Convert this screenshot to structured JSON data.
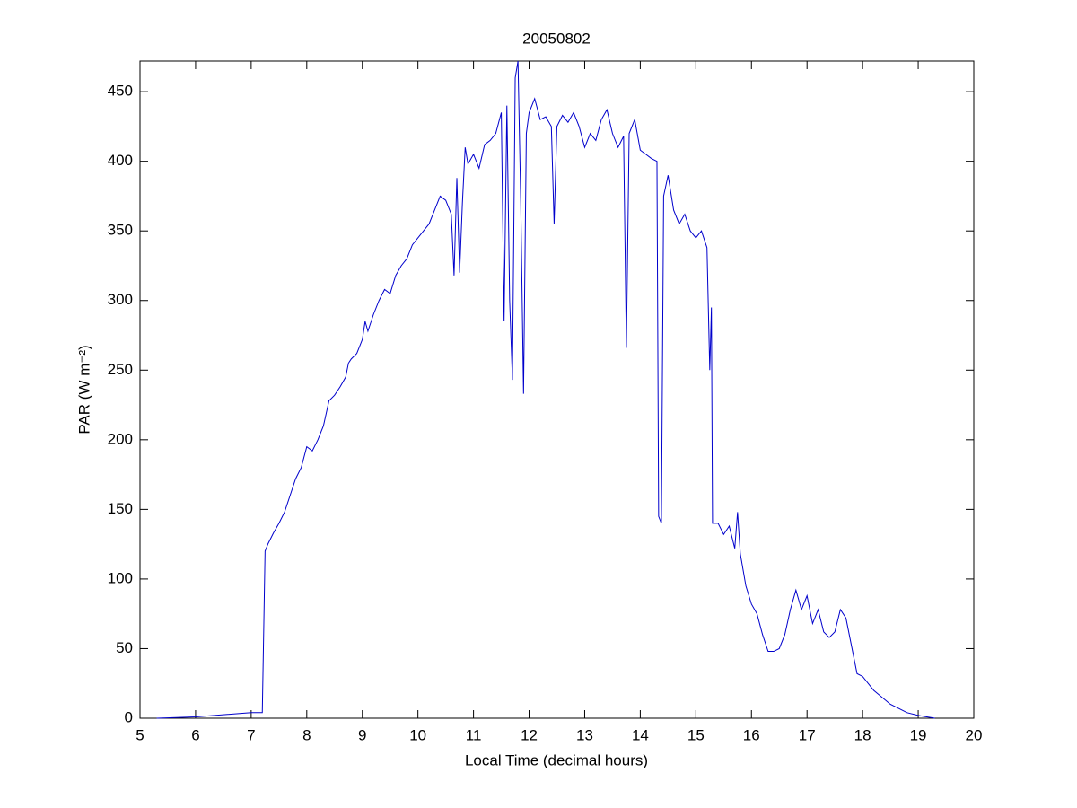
{
  "chart_data": {
    "type": "line",
    "title": "20050802",
    "xlabel": "Local Time (decimal hours)",
    "ylabel": "PAR (W m⁻²)",
    "x": [
      5.3,
      6,
      7,
      7.2,
      7.22,
      7.25,
      7.3,
      7.4,
      7.5,
      7.6,
      7.7,
      7.8,
      7.9,
      8.0,
      8.1,
      8.2,
      8.3,
      8.4,
      8.5,
      8.6,
      8.7,
      8.75,
      8.8,
      8.9,
      9.0,
      9.05,
      9.1,
      9.2,
      9.3,
      9.4,
      9.5,
      9.6,
      9.7,
      9.8,
      9.9,
      10.0,
      10.1,
      10.2,
      10.3,
      10.4,
      10.5,
      10.6,
      10.65,
      10.7,
      10.75,
      10.8,
      10.85,
      10.9,
      11.0,
      11.1,
      11.2,
      11.3,
      11.4,
      11.5,
      11.55,
      11.6,
      11.65,
      11.7,
      11.75,
      11.8,
      11.85,
      11.9,
      11.95,
      12.0,
      12.1,
      12.2,
      12.3,
      12.4,
      12.45,
      12.5,
      12.6,
      12.7,
      12.8,
      12.9,
      13.0,
      13.1,
      13.2,
      13.3,
      13.4,
      13.5,
      13.6,
      13.7,
      13.75,
      13.8,
      13.9,
      14.0,
      14.1,
      14.2,
      14.3,
      14.33,
      14.38,
      14.42,
      14.5,
      14.6,
      14.7,
      14.8,
      14.9,
      15.0,
      15.1,
      15.2,
      15.25,
      15.28,
      15.3,
      15.4,
      15.5,
      15.6,
      15.7,
      15.75,
      15.8,
      15.9,
      16.0,
      16.1,
      16.2,
      16.3,
      16.4,
      16.5,
      16.6,
      16.7,
      16.8,
      16.9,
      17.0,
      17.1,
      17.2,
      17.3,
      17.4,
      17.5,
      17.6,
      17.7,
      17.8,
      17.9,
      18.0,
      18.2,
      18.5,
      18.8,
      19.0,
      19.3
    ],
    "series": [
      {
        "name": "PAR",
        "color": "#0000cc",
        "values": [
          0,
          1,
          4,
          4,
          50,
          120,
          125,
          133,
          140,
          148,
          160,
          172,
          180,
          195,
          192,
          200,
          210,
          228,
          232,
          238,
          245,
          255,
          258,
          262,
          272,
          285,
          278,
          290,
          300,
          308,
          305,
          318,
          325,
          330,
          340,
          345,
          350,
          355,
          365,
          375,
          372,
          362,
          318,
          388,
          320,
          370,
          410,
          398,
          405,
          395,
          412,
          415,
          420,
          435,
          285,
          440,
          300,
          243,
          460,
          472,
          370,
          233,
          420,
          435,
          445,
          430,
          432,
          425,
          355,
          425,
          433,
          428,
          435,
          425,
          410,
          420,
          415,
          430,
          437,
          420,
          410,
          418,
          266,
          420,
          430,
          408,
          405,
          402,
          400,
          145,
          140,
          375,
          390,
          365,
          355,
          362,
          350,
          345,
          350,
          338,
          250,
          295,
          140,
          140,
          132,
          138,
          122,
          148,
          118,
          95,
          82,
          75,
          60,
          48,
          48,
          50,
          60,
          78,
          92,
          78,
          88,
          68,
          78,
          62,
          58,
          62,
          78,
          72,
          52,
          32,
          30,
          20,
          10,
          4,
          2,
          0
        ]
      }
    ],
    "xlim": [
      5,
      20
    ],
    "ylim": [
      0,
      472
    ],
    "xticks": [
      5,
      6,
      7,
      8,
      9,
      10,
      11,
      12,
      13,
      14,
      15,
      16,
      17,
      18,
      19,
      20
    ],
    "yticks": [
      0,
      50,
      100,
      150,
      200,
      250,
      300,
      350,
      400,
      450
    ],
    "grid": false
  }
}
